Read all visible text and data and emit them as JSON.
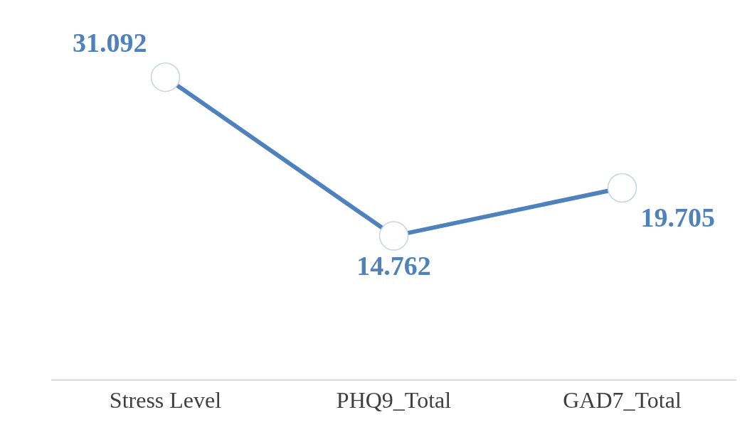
{
  "chart_data": {
    "type": "line",
    "categories": [
      "Stress Level",
      "PHQ9_Total",
      "GAD7_Total"
    ],
    "series": [
      {
        "color": "#4f81bd",
        "values": [
          31.092,
          14.762,
          19.705
        ]
      }
    ],
    "tick_labels": "x",
    "data_labels": true,
    "marker": "circle"
  }
}
